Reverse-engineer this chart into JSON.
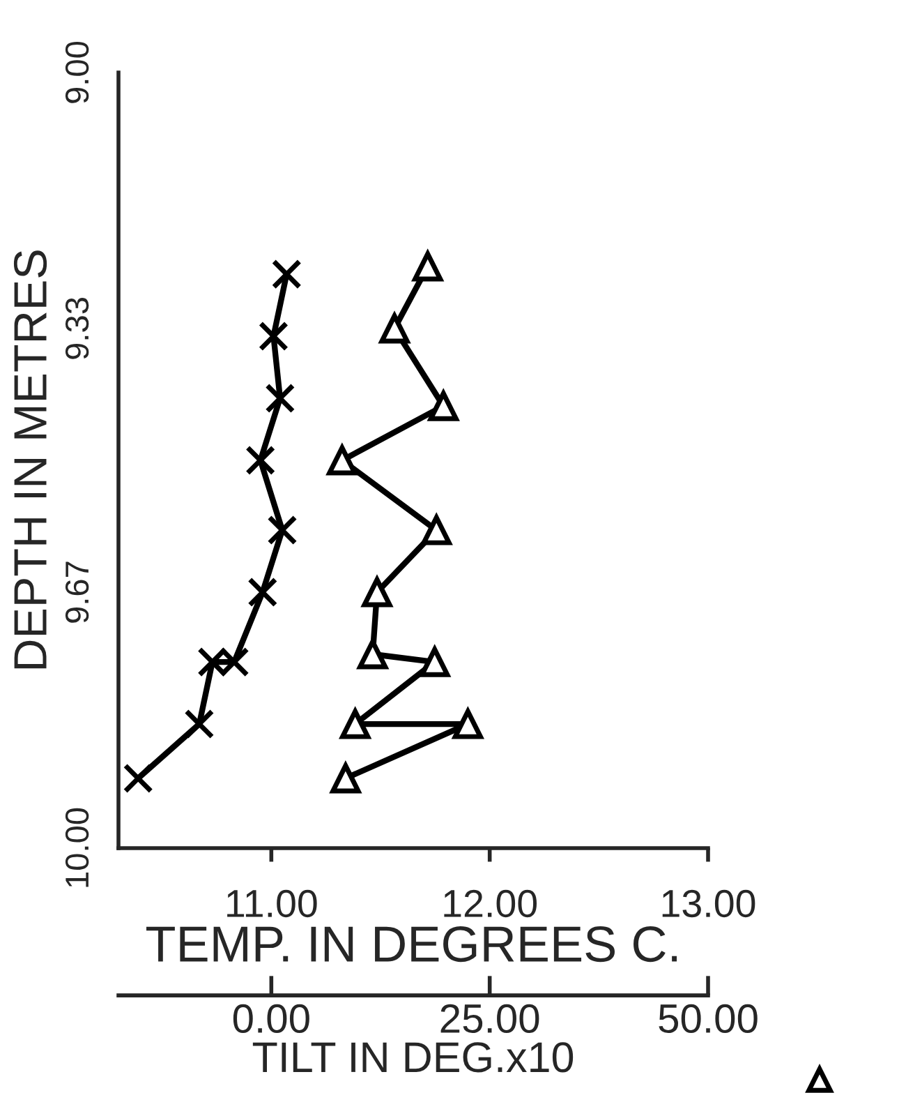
{
  "chart_data": {
    "type": "line",
    "xlabel": "TEMP. IN DEGREES C.",
    "x2label": "TILT IN DEG.x10",
    "ylabel": "DEPTH IN METRES",
    "xlim": [
      10.3,
      13.0
    ],
    "xticks": [
      {
        "value": 11,
        "label": "11.00"
      },
      {
        "value": 12,
        "label": "12.00"
      },
      {
        "value": 13,
        "label": "13.00"
      }
    ],
    "x2lim": [
      -17.5,
      50.0
    ],
    "x2ticks": [
      {
        "value": 0,
        "label": "0.00"
      },
      {
        "value": 25,
        "label": "25.00"
      },
      {
        "value": 50,
        "label": "50.00"
      }
    ],
    "ylim": [
      10.0,
      9.0
    ],
    "yticks": [
      {
        "value": 9.0,
        "label": "9.00"
      },
      {
        "value": 9.33,
        "label": "9.33"
      },
      {
        "value": 9.67,
        "label": "9.67"
      },
      {
        "value": 10.0,
        "label": "10.00"
      }
    ],
    "grid": false,
    "legend": false,
    "line_style": "solid",
    "series": [
      {
        "color": "#000000",
        "marker": "cross",
        "x": [
          11.07,
          11.01,
          11.04,
          10.95,
          11.05,
          10.96,
          10.83,
          10.73,
          10.67,
          10.39
        ],
        "values": [
          9.26,
          9.34,
          9.42,
          9.5,
          9.59,
          9.67,
          9.76,
          9.76,
          9.84,
          9.91
        ]
      },
      {
        "color": "#000000",
        "marker": "triangle",
        "axis": "x2",
        "x": [
          17.9,
          14.1,
          19.7,
          8.1,
          18.9,
          12.1,
          11.6,
          18.7,
          9.6,
          22.5,
          8.5
        ],
        "values": [
          9.25,
          9.33,
          9.43,
          9.5,
          9.59,
          9.67,
          9.75,
          9.76,
          9.84,
          9.84,
          9.91
        ]
      }
    ]
  }
}
